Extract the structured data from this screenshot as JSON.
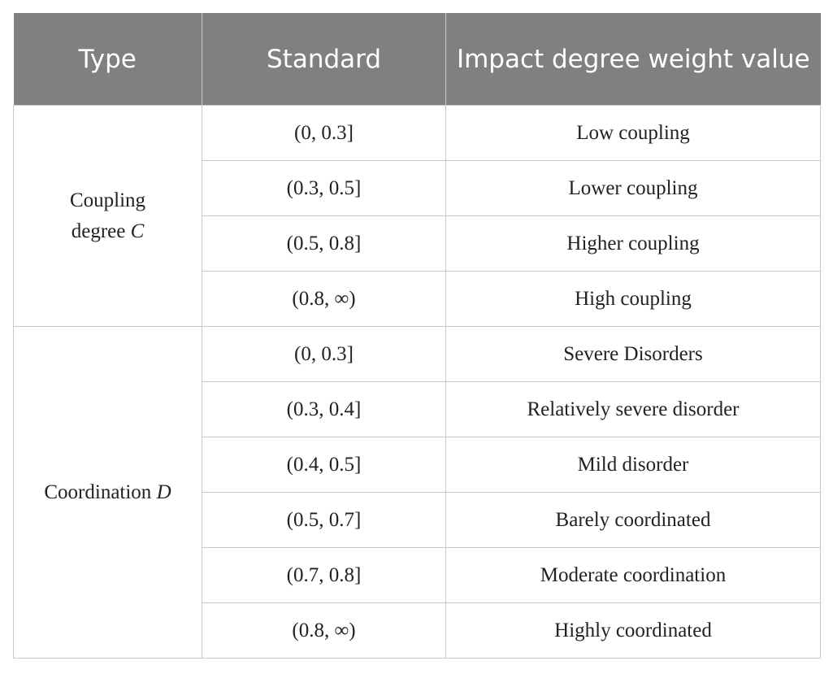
{
  "table": {
    "header": [
      "Type",
      "Standard",
      "Impact degree weight value"
    ],
    "groups": [
      {
        "type": {
          "label": "Coupling degree",
          "symbol": "C"
        },
        "rows": [
          [
            "(0, 0.3]",
            "Low coupling"
          ],
          [
            "(0.3, 0.5]",
            "Lower coupling"
          ],
          [
            "(0.5, 0.8]",
            "Higher coupling"
          ],
          [
            "(0.8, ∞)",
            "High coupling"
          ]
        ]
      },
      {
        "type": {
          "label": "Coordination",
          "symbol": "D"
        },
        "rows": [
          [
            "(0, 0.3]",
            "Severe Disorders"
          ],
          [
            "(0.3, 0.4]",
            "Relatively severe disorder"
          ],
          [
            "(0.4, 0.5]",
            "Mild disorder"
          ],
          [
            "(0.5, 0.7]",
            "Barely coordinated"
          ],
          [
            "(0.7, 0.8]",
            "Moderate coordination"
          ],
          [
            "(0.8, ∞)",
            "Highly coordinated"
          ]
        ]
      }
    ]
  }
}
